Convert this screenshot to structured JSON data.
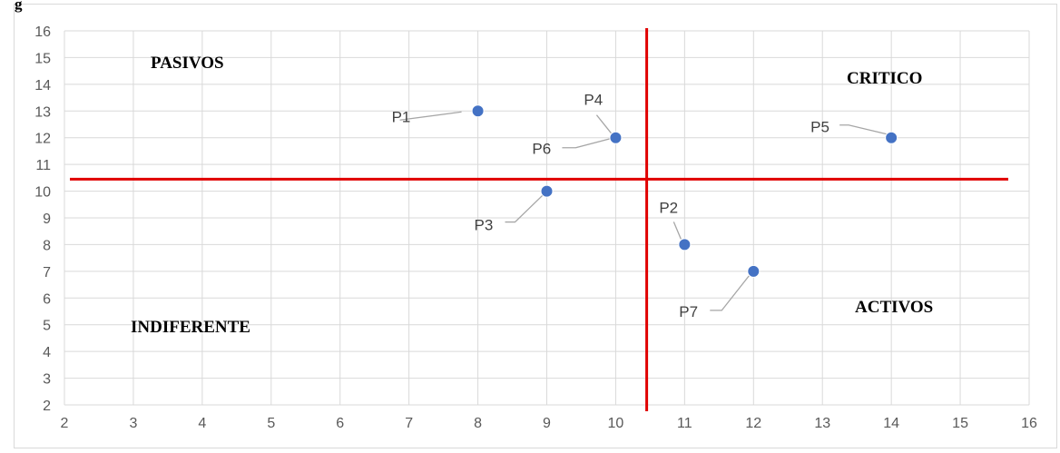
{
  "page": {
    "cut_label": "g"
  },
  "chart_data": {
    "type": "scatter",
    "xlim": [
      2,
      16
    ],
    "ylim": [
      2,
      16
    ],
    "x_ticks": [
      2,
      3,
      4,
      5,
      6,
      7,
      8,
      9,
      10,
      11,
      12,
      13,
      14,
      15,
      16
    ],
    "y_ticks": [
      2,
      3,
      4,
      5,
      6,
      7,
      8,
      9,
      10,
      11,
      12,
      13,
      14,
      15,
      16
    ],
    "grid": true,
    "marker_color": "#4472c4",
    "divider_color": "#e00000",
    "dividers": {
      "x": 10.45,
      "y": 10.45
    },
    "points": [
      {
        "label": "P1",
        "x": 8,
        "y": 13
      },
      {
        "label": "P2",
        "x": 11,
        "y": 8
      },
      {
        "label": "P3",
        "x": 9,
        "y": 10
      },
      {
        "label": "P4",
        "x": 10,
        "y": 12
      },
      {
        "label": "P5",
        "x": 14,
        "y": 12
      },
      {
        "label": "P6",
        "x": 10,
        "y": 12
      },
      {
        "label": "P7",
        "x": 12,
        "y": 7
      }
    ],
    "quadrant_labels": [
      {
        "text": "PASIVOS",
        "position": "top-left"
      },
      {
        "text": "CRITICO",
        "position": "top-right"
      },
      {
        "text": "INDIFERENTE",
        "position": "bottom-left"
      },
      {
        "text": "ACTIVOS",
        "position": "bottom-right"
      }
    ]
  }
}
